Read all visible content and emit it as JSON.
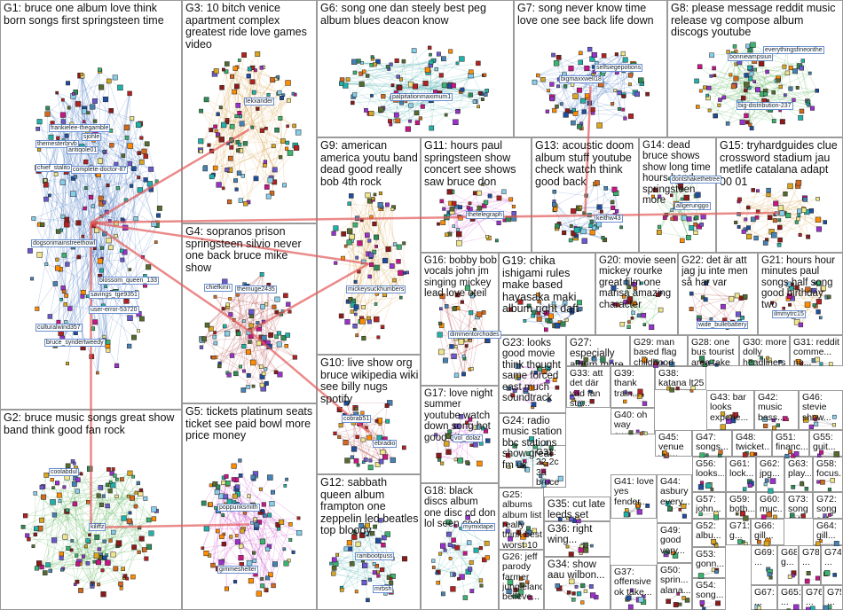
{
  "groups": [
    "G1: bruce one album love think born songs first springsteen time",
    "G2: bruce music songs great show band think good fan rock",
    "G3: 10 bitch venice apartment complex greatest ride love games video",
    "G4: sopranos prison springsteen silvio never one back bruce mike show",
    "G5: tickets platinum seats ticket see paid bowl more price money",
    "G6: song one dan steely best peg album blues deacon know",
    "G7: song never know time love one see back life down",
    "G8: please message reddit music release vg compose album discogs youtube",
    "G9: american america youtu band dead good really bob 4th rock",
    "G10: live show org bruce wikipedia wiki see billy nugs spotify",
    "G11: hours paul springsteen show concert see shows saw bruce don",
    "G12: sabbath queen album frampton one zeppelin led beatles top bloody",
    "G13: acoustic doom album stuff youtube check watch think good back",
    "G14: dead bruce shows show long time hours band springsteen more",
    "G15: tryhardguides clue crossword stadium jau metlife catalana adapt 00 01",
    "G16: bobby bob vocals john jm singing mickey lead love oteil",
    "G17: love night summer youtube watch down song hot good city",
    "G18: black discs album one disc cd don lol seen cool",
    "G19: chika ishigami rules make based hayasaka maki album right daft",
    "G20: movie seen mickey rourke great film one marisa amazing character",
    "G21: hours hour minutes paul songs half song good birthday two",
    "G22: det är att jag ju inte men så har var",
    "G23: looks good movie think thought same forced east much soundtrack",
    "G24: radio music station bbc stations show great fm uk",
    "G32: 22 2c 3a bruce clip...",
    "G27: especially album more recommend...",
    "G29: man based flag childhood remember...",
    "G28: one bus tourist area take use...",
    "G30: more dolly headliners miley...",
    "G31: reddit comme... np...",
    "G33: att det där vad fan sta...",
    "G39: thank train...",
    "G38: katana lt25 good experi...",
    "G43: bar looks experie...",
    "G42: music bass...",
    "G46: stevie show...",
    "G40: oh way away",
    "G45: venue view...",
    "G47: songs...",
    "G48: twicket...",
    "G51: financ...",
    "G55: guit...",
    "G25: albums album list really think best worst 10 score one",
    "G26: jeff parody farmer jungleland believe...",
    "G35: cut late leeds set hair...",
    "G36: right wing...",
    "G34: show aau wilbon...",
    "G41: love yes fender...",
    "G37: offensive ok take...",
    "G44: asbury every...",
    "G49: good very...",
    "G50: sprin... alana...",
    "G56: looks...",
    "G61: lock...",
    "G62: jpg...",
    "G63: play...",
    "G58: focus...",
    "G57: john...",
    "G52: albu...",
    "G53: gonn...",
    "G54: song...",
    "G59: both...",
    "G60: muc...",
    "G73: song set...",
    "G72: song set...",
    "G71: g...",
    "G66: gill...",
    "G64: gill...",
    "G69: ...",
    "G68: g...",
    "G78: ...",
    "G74: ...",
    "G67: ...",
    "G65: ...",
    "G76: ...",
    "G75: ..."
  ],
  "node_labels": [
    "frankielee-thegamble",
    "sjohle",
    "themesterbrvb",
    "antiqole01",
    "chief_stalito",
    "complete-doctor-87",
    "dogsonmainstreethowl",
    "blossom_queen_133",
    "savings_tge9351",
    "user-error-53720",
    "culturalwind357",
    "bruce_syndertweedy",
    "coolabdul",
    "kiliffz",
    "lekxander",
    "chiefkinn",
    "themuge2435",
    "poppunksmith",
    "gimmeshelter",
    "palpitationmaximum1",
    "bigmaxxwell18",
    "selfsiegepotions",
    "bonnieampsiun",
    "everythingsfineonthe",
    "big-distribution-237",
    "mickeysuckhumbers",
    "cobrab51",
    "ebradio",
    "thetelegraph",
    "keithw43",
    "dontshakethetree",
    "allgerunggo",
    "ilmmytrc15",
    "wide_bullebattery",
    "dimmentorchodes",
    "vol_dolaz",
    "mymixtape",
    "rambootpuss",
    "mrbsh"
  ]
}
